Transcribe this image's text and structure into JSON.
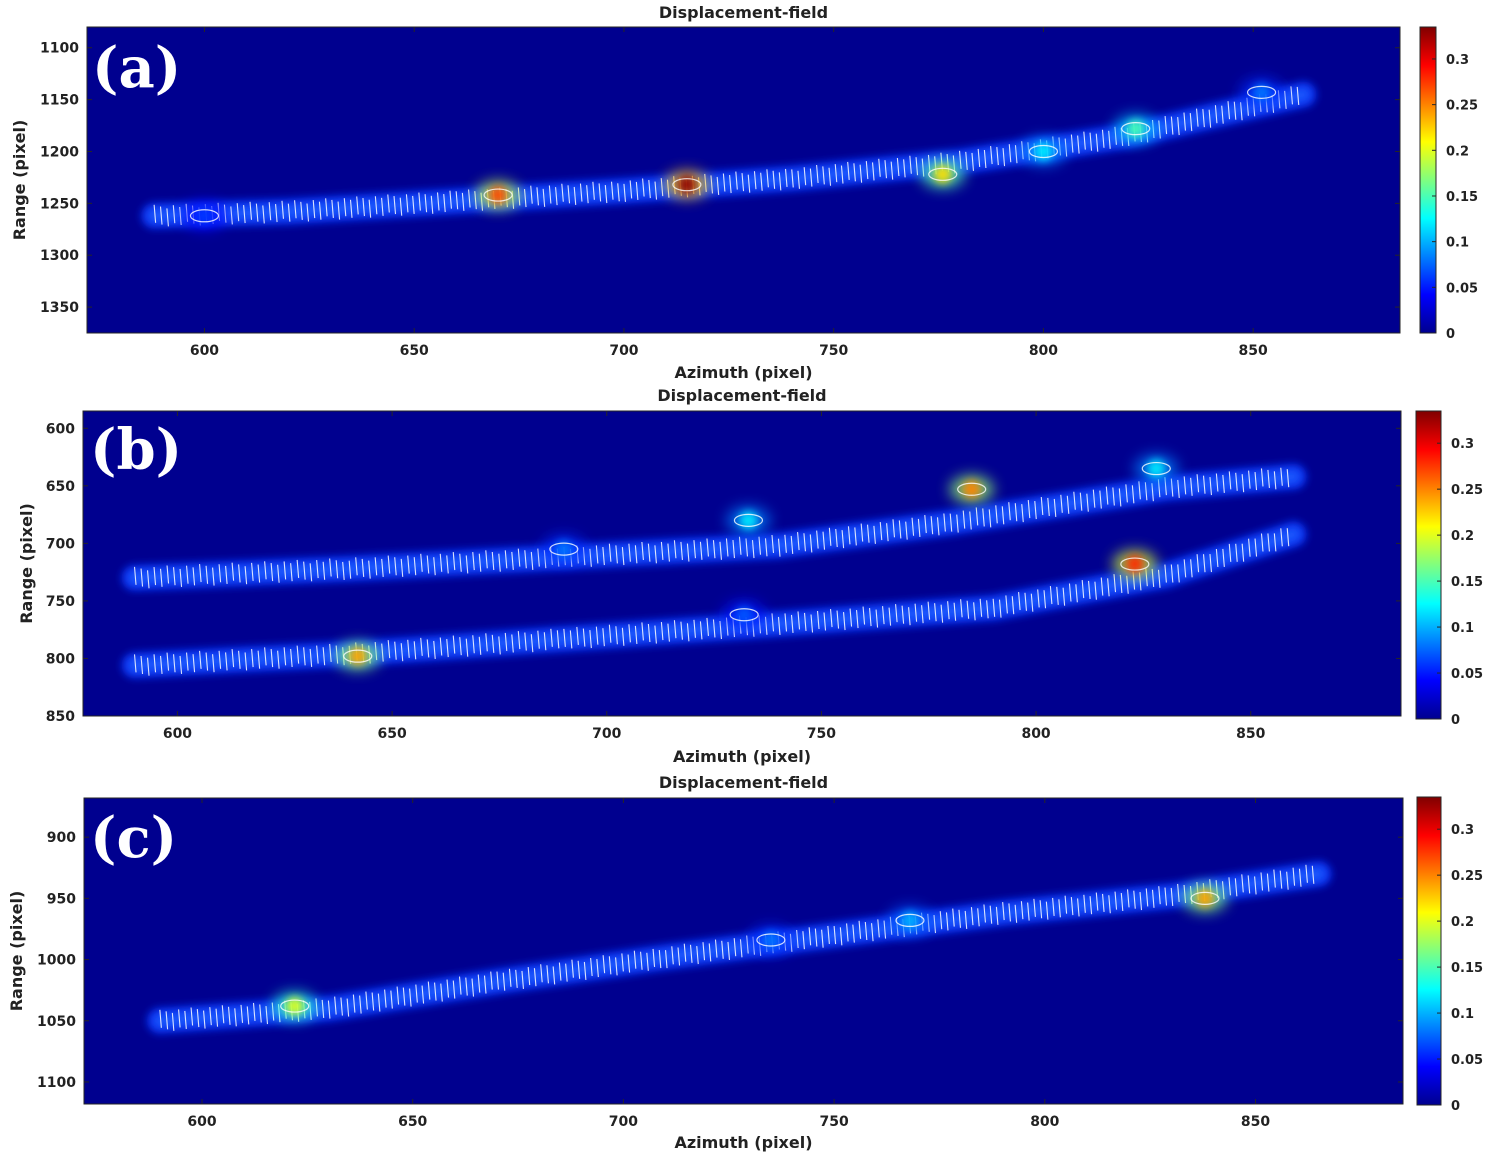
{
  "chart_data": [
    {
      "type": "heatmap",
      "panel_label": "(a)",
      "title": "Displacement-field",
      "xlabel": "Azimuth (pixel)",
      "ylabel": "Range (pixel)",
      "xlim": [
        572,
        885
      ],
      "ylim": [
        1375,
        1080
      ],
      "x_ticks": [
        600,
        650,
        700,
        750,
        800,
        850
      ],
      "y_ticks": [
        1100,
        1150,
        1200,
        1250,
        1300,
        1350
      ],
      "colorbar": {
        "range": [
          0,
          0.335
        ],
        "ticks": [
          0,
          0.05,
          0.1,
          0.15,
          0.2,
          0.25,
          0.3
        ],
        "colormap": "jet"
      },
      "band": [
        [
          588,
          1262
        ],
        [
          620,
          1258
        ],
        [
          660,
          1248
        ],
        [
          700,
          1238
        ],
        [
          740,
          1226
        ],
        [
          780,
          1210
        ],
        [
          820,
          1185
        ],
        [
          862,
          1145
        ]
      ],
      "hotspots": [
        {
          "x": 670,
          "y": 1242,
          "value": 0.27
        },
        {
          "x": 715,
          "y": 1232,
          "value": 0.33
        },
        {
          "x": 776,
          "y": 1222,
          "value": 0.22
        },
        {
          "x": 800,
          "y": 1200,
          "value": 0.12
        },
        {
          "x": 822,
          "y": 1178,
          "value": 0.15
        },
        {
          "x": 852,
          "y": 1143,
          "value": 0.08
        },
        {
          "x": 600,
          "y": 1262,
          "value": 0.06
        }
      ]
    },
    {
      "type": "heatmap",
      "panel_label": "(b)",
      "title": "Displacement-field",
      "xlabel": "Azimuth (pixel)",
      "ylabel": "Range (pixel)",
      "xlim": [
        578,
        885
      ],
      "ylim": [
        850,
        585
      ],
      "x_ticks": [
        600,
        650,
        700,
        750,
        800,
        850
      ],
      "y_ticks": [
        600,
        650,
        700,
        750,
        800,
        850
      ],
      "colorbar": {
        "range": [
          0,
          0.335
        ],
        "ticks": [
          0,
          0.05,
          0.1,
          0.15,
          0.2,
          0.25,
          0.3
        ],
        "colormap": "jet"
      },
      "bands": [
        [
          [
            590,
            730
          ],
          [
            640,
            722
          ],
          [
            690,
            712
          ],
          [
            740,
            702
          ],
          [
            780,
            682
          ],
          [
            830,
            652
          ],
          [
            860,
            642
          ]
        ],
        [
          [
            590,
            806
          ],
          [
            640,
            796
          ],
          [
            690,
            783
          ],
          [
            740,
            770
          ],
          [
            790,
            756
          ],
          [
            830,
            728
          ],
          [
            860,
            692
          ]
        ]
      ],
      "hotspots": [
        {
          "x": 785,
          "y": 653,
          "value": 0.25
        },
        {
          "x": 823,
          "y": 718,
          "value": 0.28
        },
        {
          "x": 642,
          "y": 798,
          "value": 0.24
        },
        {
          "x": 733,
          "y": 680,
          "value": 0.12
        },
        {
          "x": 690,
          "y": 705,
          "value": 0.08
        },
        {
          "x": 828,
          "y": 635,
          "value": 0.12
        },
        {
          "x": 732,
          "y": 762,
          "value": 0.07
        }
      ]
    },
    {
      "type": "heatmap",
      "panel_label": "(c)",
      "title": "Displacement-field",
      "xlabel": "Azimuth (pixel)",
      "ylabel": "Range (pixel)",
      "xlim": [
        572,
        885
      ],
      "ylim": [
        1118,
        868
      ],
      "x_ticks": [
        600,
        650,
        700,
        750,
        800,
        850
      ],
      "y_ticks": [
        900,
        950,
        1000,
        1050,
        1100
      ],
      "colorbar": {
        "range": [
          0,
          0.335
        ],
        "ticks": [
          0,
          0.05,
          0.1,
          0.15,
          0.2,
          0.25,
          0.3
        ],
        "colormap": "jet"
      },
      "band": [
        [
          590,
          1050
        ],
        [
          630,
          1040
        ],
        [
          670,
          1018
        ],
        [
          710,
          998
        ],
        [
          750,
          980
        ],
        [
          790,
          962
        ],
        [
          830,
          948
        ],
        [
          865,
          930
        ]
      ],
      "hotspots": [
        {
          "x": 622,
          "y": 1038,
          "value": 0.2
        },
        {
          "x": 838,
          "y": 950,
          "value": 0.24
        },
        {
          "x": 768,
          "y": 968,
          "value": 0.1
        },
        {
          "x": 735,
          "y": 984,
          "value": 0.08
        }
      ]
    }
  ]
}
